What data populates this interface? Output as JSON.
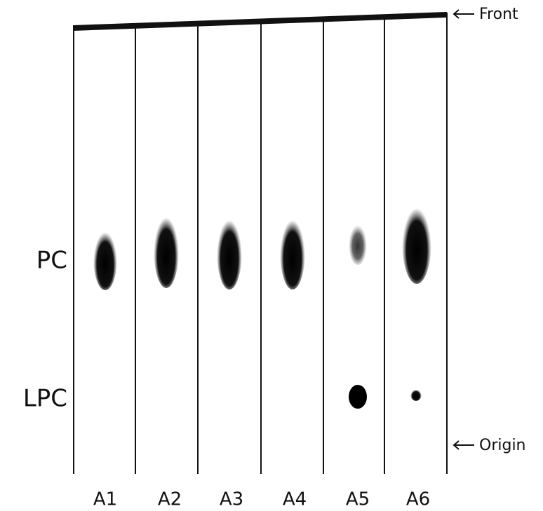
{
  "lanes": [
    "A1",
    "A2",
    "A3",
    "A4",
    "A5",
    "A6"
  ],
  "row_labels": {
    "pc": "PC",
    "lpc": "LPC"
  },
  "markers": {
    "front": "Front",
    "origin": "Origin"
  }
}
